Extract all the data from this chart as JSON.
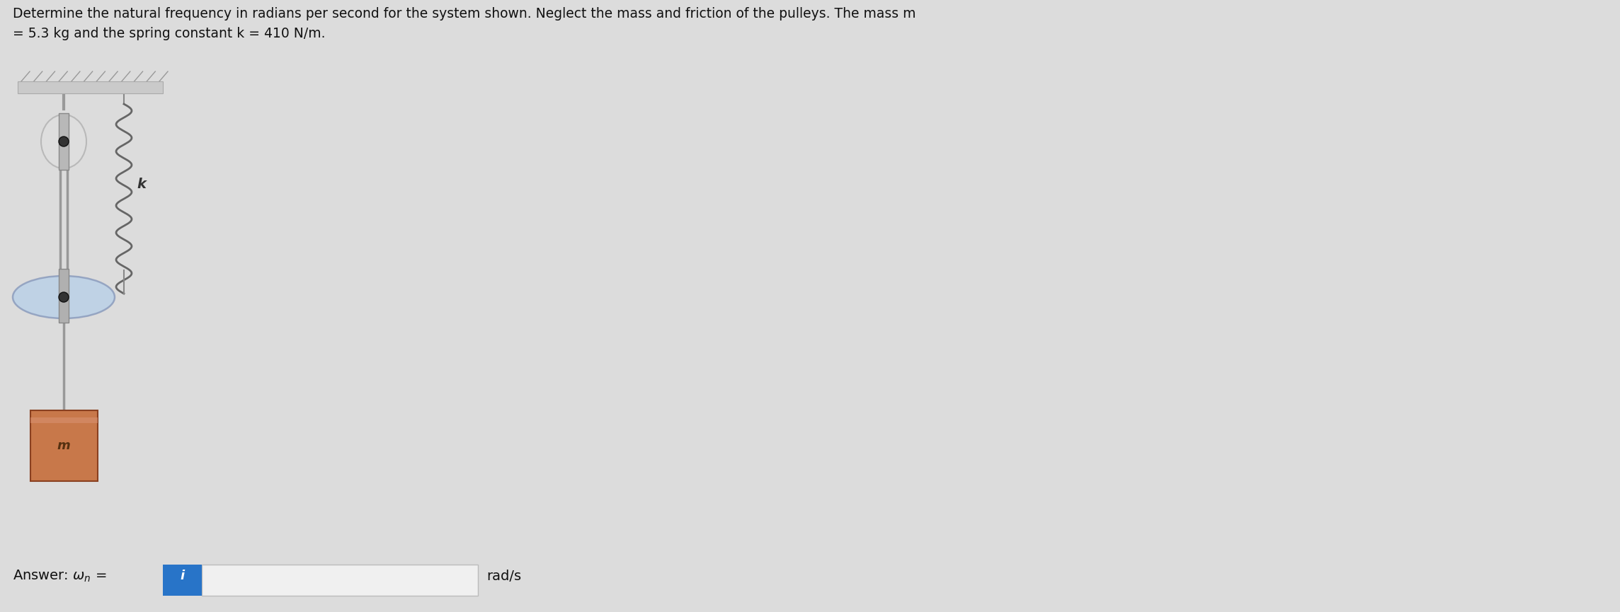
{
  "title_line1": "Determine the natural frequency in radians per second for the system shown. Neglect the mass and friction of the pulleys. The mass m",
  "title_line2": "= 5.3 kg and the spring constant k = 410 N/m.",
  "answer_unit": "rad/s",
  "bg_color": "#dcdcdc",
  "title_fontsize": 13.5,
  "answer_fontsize": 14,
  "fig_width": 22.88,
  "fig_height": 8.65,
  "ceiling_color": "#c8c8c8",
  "spring_color": "#555555",
  "pulley_large_color_outer": "#b0cce0",
  "mass_color_top": "#d4855a",
  "mass_color_mid": "#c4784a",
  "rope_color": "#888888",
  "input_box_color": "#2874c8",
  "input_box_text_color": "#ffffff"
}
